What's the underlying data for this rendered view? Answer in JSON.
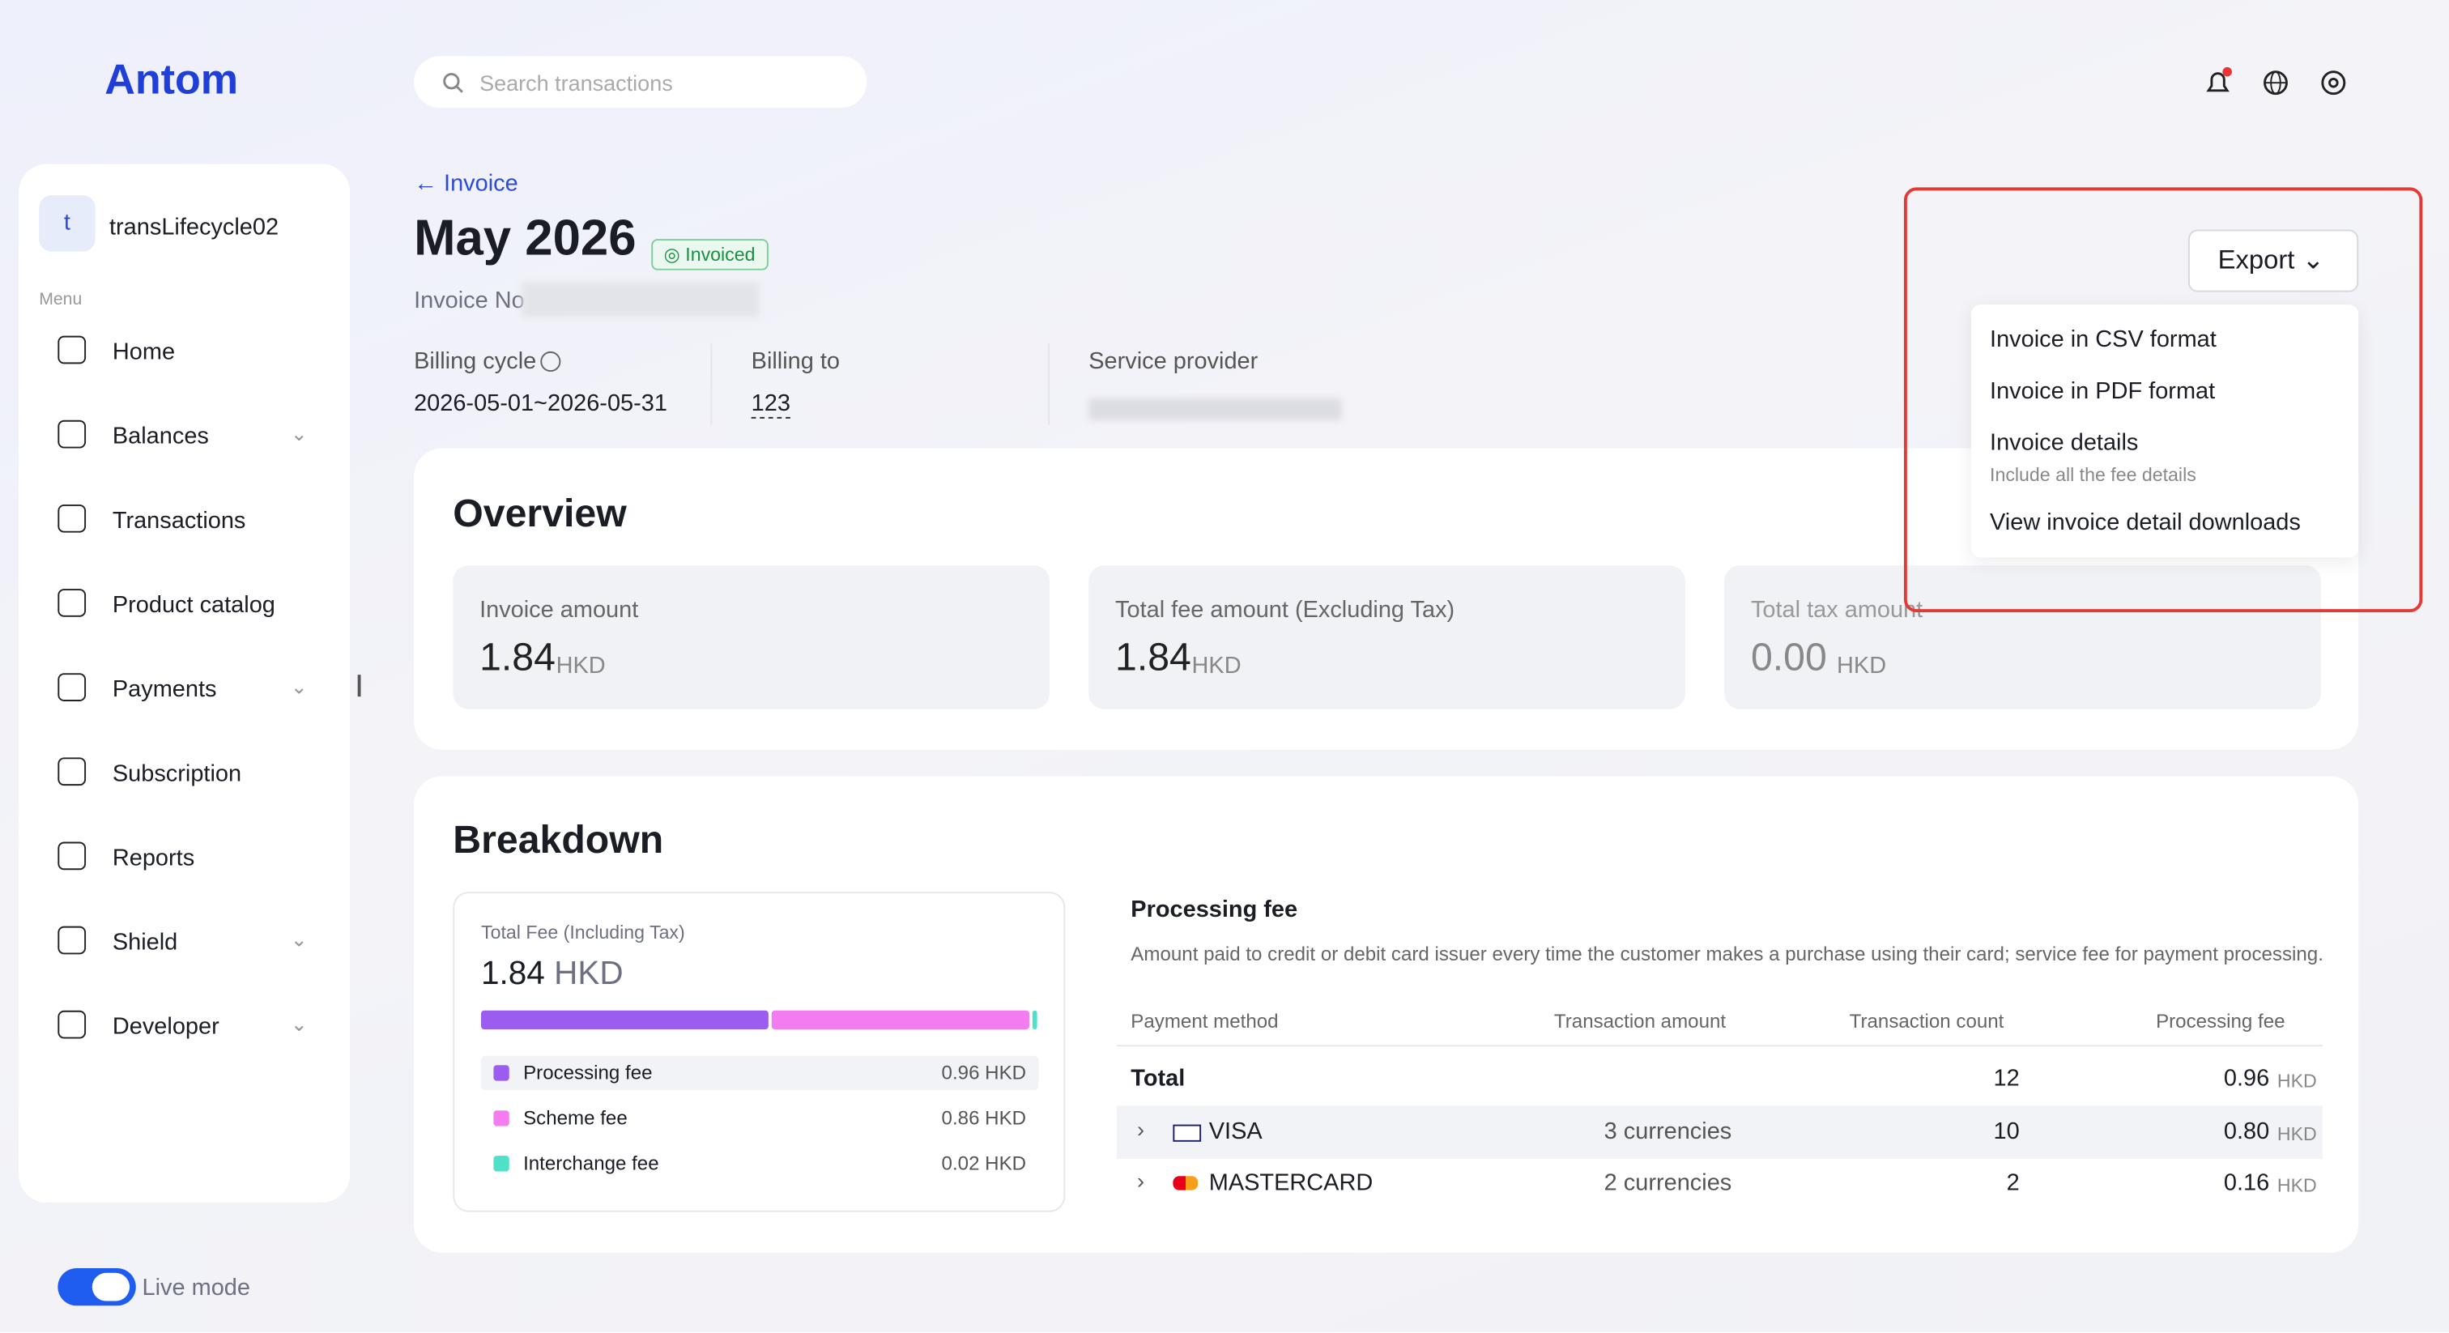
{
  "header": {
    "logo": "Antom",
    "search_placeholder": "Search transactions"
  },
  "sidebar": {
    "account_initial": "t",
    "account": "transLifecycle02",
    "menu_label": "Menu",
    "items": [
      "Home",
      "Balances",
      "Transactions",
      "Product catalog",
      "Payments",
      "Subscription",
      "Reports",
      "Shield",
      "Developer"
    ],
    "live_mode": "Live mode"
  },
  "page": {
    "back": "Invoice",
    "title": "May 2026",
    "status": "Invoiced",
    "invoice_no": "Invoice No",
    "fields": [
      {
        "label": "Billing cycle",
        "value": "2026-05-01~2026-05-31"
      },
      {
        "label": "Billing to",
        "value": "123"
      },
      {
        "label": "Service provider"
      }
    ]
  },
  "export": {
    "button": "Export",
    "menu": [
      {
        "label": "Invoice in CSV format"
      },
      {
        "label": "Invoice in PDF format"
      },
      {
        "label": "Invoice details",
        "note": "Include all the fee details"
      },
      {
        "label": "View invoice detail downloads"
      }
    ]
  },
  "overview": {
    "title": "Overview",
    "cards": [
      {
        "label": "Invoice amount",
        "amount": "1.84",
        "currency": "HKD"
      },
      {
        "label": "Total fee amount (Excluding Tax)",
        "amount": "1.84",
        "currency": "HKD"
      },
      {
        "label": "Total tax amount",
        "amount": "0.00",
        "currency": "HKD"
      }
    ]
  },
  "breakdown": {
    "title": "Breakdown",
    "total_label": "Total Fee (Including Tax)",
    "total_amount": "1.84",
    "total_currency": "HKD",
    "items": [
      {
        "name": "Processing fee",
        "amount": "0.96 HKD",
        "color": "#9b5cf0"
      },
      {
        "name": "Scheme fee",
        "amount": "0.86 HKD",
        "color": "#f37df0"
      },
      {
        "name": "Interchange fee",
        "amount": "0.02 HKD",
        "color": "#4fe0c8"
      }
    ]
  },
  "processing_fee": {
    "title": "Processing fee",
    "description": "Amount paid to credit or debit card issuer every time the customer makes a purchase using their card; service fee for payment processing.",
    "columns": [
      "Payment method",
      "Transaction amount",
      "Transaction count",
      "Processing fee"
    ],
    "total": {
      "label": "Total",
      "count": "12",
      "fee": "0.96",
      "currency": "HKD"
    },
    "rows": [
      {
        "method": "VISA",
        "amount": "3 currencies",
        "count": "10",
        "fee": "0.80",
        "currency": "HKD"
      },
      {
        "method": "MASTERCARD",
        "amount": "2 currencies",
        "count": "2",
        "fee": "0.16",
        "currency": "HKD"
      }
    ]
  }
}
